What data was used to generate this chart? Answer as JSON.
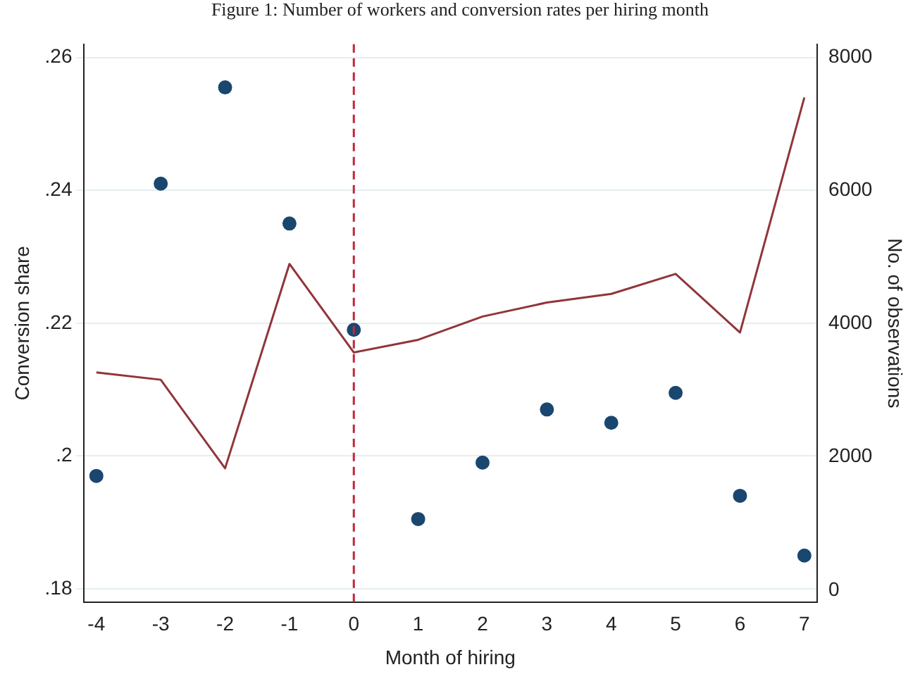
{
  "chart_data": {
    "type": "scatter",
    "title": "Figure 1: Number of workers and conversion rates per hiring month",
    "xlabel": "Month of hiring",
    "ylabel": "Conversion share",
    "y2label": "No. of observations",
    "xlim": [
      -4.2,
      7.2
    ],
    "xticks": [
      -4,
      -3,
      -2,
      -1,
      0,
      1,
      2,
      3,
      4,
      5,
      6,
      7
    ],
    "ylim": [
      0.178,
      0.262
    ],
    "yticks": [
      {
        "value": 0.18,
        "label": ".18"
      },
      {
        "value": 0.2,
        "label": ".2"
      },
      {
        "value": 0.22,
        "label": ".22"
      },
      {
        "value": 0.24,
        "label": ".24"
      },
      {
        "value": 0.26,
        "label": ".26"
      }
    ],
    "y2lim": [
      -180,
      8200
    ],
    "y2ticks": [
      0,
      2000,
      4000,
      6000,
      8000
    ],
    "grid": "y",
    "legend": false,
    "ref_lines": [
      {
        "axis": "x",
        "value": 0,
        "color": "#c0283c",
        "line_style": "dashed"
      }
    ],
    "series": [
      {
        "type": "scatter",
        "marker": "circle",
        "color": "#1a476f",
        "x": [
          -4,
          -3,
          -2,
          -1,
          0,
          1,
          2,
          3,
          4,
          5,
          6,
          7
        ],
        "values": [
          0.197,
          0.241,
          0.2555,
          0.235,
          0.219,
          0.1905,
          0.199,
          0.207,
          0.205,
          0.2095,
          0.194,
          0.185
        ]
      },
      {
        "type": "line",
        "marker": "none",
        "axis": "y2",
        "color": "#90353b",
        "x": [
          -4,
          -3,
          -2,
          -1,
          0,
          1,
          2,
          3,
          4,
          5,
          6,
          7
        ],
        "values": [
          3270,
          3160,
          1830,
          4900,
          3570,
          3760,
          4110,
          4320,
          4450,
          4750,
          3870,
          7400
        ]
      }
    ]
  }
}
